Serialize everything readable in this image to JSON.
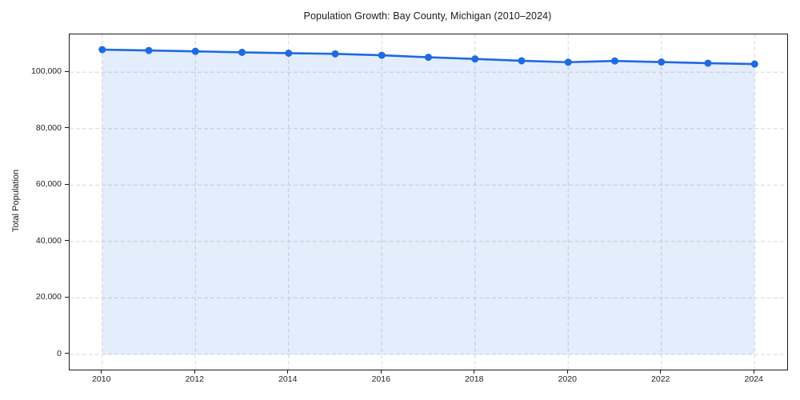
{
  "chart_data": {
    "type": "line",
    "title": "Population Growth: Bay County, Michigan (2010–2024)",
    "xlabel": "",
    "ylabel": "Total Population",
    "x": [
      2010,
      2011,
      2012,
      2013,
      2014,
      2015,
      2016,
      2017,
      2018,
      2019,
      2020,
      2021,
      2022,
      2023,
      2024
    ],
    "series": [
      {
        "name": "Total Population",
        "values": [
          108000,
          107700,
          107400,
          107050,
          106750,
          106500,
          106000,
          105300,
          104700,
          104050,
          103550,
          104000,
          103600,
          103200,
          102900
        ]
      }
    ],
    "fill": "to-zero",
    "marker": "circle",
    "grid": true,
    "grid_style": "dashed",
    "legend": "none",
    "xlim": [
      2009.3,
      2024.7
    ],
    "ylim": [
      -5400,
      113400
    ],
    "xticks": {
      "values": [
        2010,
        2012,
        2014,
        2016,
        2018,
        2020,
        2022,
        2024
      ],
      "labels": [
        "2010",
        "2012",
        "2014",
        "2016",
        "2018",
        "2020",
        "2022",
        "2024"
      ]
    },
    "yticks": {
      "values": [
        0,
        20000,
        40000,
        60000,
        80000,
        100000
      ],
      "labels": [
        "0",
        "20,000",
        "40,000",
        "60,000",
        "80,000",
        "100,000"
      ]
    },
    "colors": {
      "line": "#1f6ae0",
      "marker": "#1f6ae0",
      "fill": "rgba(31,106,224,0.12)",
      "grid": "#d7d7d7",
      "spine": "#1a1a1a",
      "text": "#1f1f1f"
    }
  }
}
